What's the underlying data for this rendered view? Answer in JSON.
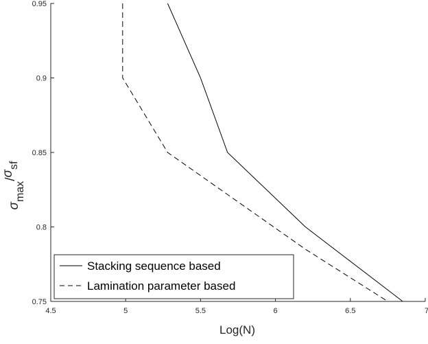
{
  "chart_data": {
    "type": "line",
    "xlabel": "Log(N)",
    "ylabel": {
      "sigma": "σ",
      "numerator_sub": "max",
      "slash": "/",
      "denominator_sub": "sf"
    },
    "xlim": [
      4.5,
      7
    ],
    "ylim": [
      0.75,
      0.95
    ],
    "xticks": [
      "4.5",
      "5",
      "5.5",
      "6",
      "6.5",
      "7"
    ],
    "yticks": [
      "0.75",
      "0.8",
      "0.85",
      "0.9",
      "0.95"
    ],
    "grid": false,
    "legend_position": "bottom-left",
    "series": [
      {
        "name": "Stacking sequence based",
        "line_style": "solid",
        "color": "#000000",
        "x": [
          5.28,
          5.5,
          5.68,
          6.2,
          6.85
        ],
        "y": [
          0.95,
          0.9,
          0.85,
          0.8,
          0.75
        ]
      },
      {
        "name": "Lamination parameter based",
        "line_style": "dashed",
        "color": "#000000",
        "x": [
          4.98,
          4.98,
          5.28,
          6.2,
          6.75
        ],
        "y": [
          0.95,
          0.9,
          0.85,
          0.785,
          0.75
        ]
      }
    ]
  }
}
